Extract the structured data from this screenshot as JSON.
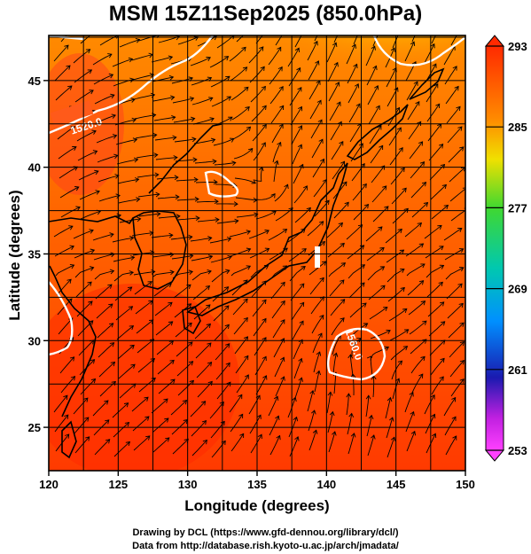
{
  "title": "MSM 15Z11Sep2025 (850.0hPa)",
  "map": {
    "xlabel": "Longitude (degrees)",
    "ylabel": "Latitude  (degrees)",
    "lon_range": [
      120,
      150
    ],
    "lat_range": [
      22.5,
      47.6
    ],
    "x_ticks": [
      "120",
      "125",
      "130",
      "135",
      "140",
      "145",
      "150"
    ],
    "x_tick_values": [
      120,
      125,
      130,
      135,
      140,
      145,
      150
    ],
    "y_ticks": [
      "25",
      "30",
      "35",
      "40",
      "45"
    ],
    "y_tick_values": [
      25,
      30,
      35,
      40,
      45
    ],
    "gridlines": true,
    "contours": [
      {
        "label": "1520.0",
        "lon": 122.8,
        "lat": 42.4
      },
      {
        "label": "1560.0",
        "lon": 142.0,
        "lat": 29.7
      }
    ]
  },
  "colorbar": {
    "tick_labels": [
      "293",
      "285",
      "277",
      "269",
      "261",
      "253"
    ],
    "tick_values": [
      293,
      285,
      277,
      269,
      261,
      253
    ],
    "range": [
      253,
      293
    ],
    "colors": [
      "#ff3300",
      "#ff8a00",
      "#d8e000",
      "#2ad82a",
      "#00c8c8",
      "#0070ff",
      "#1a20c0",
      "#ff30ff"
    ]
  },
  "credits": {
    "line1": "Drawing by DCL (https://www.gfd-dennou.org/library/dcl/)",
    "line2": "Data from http://database.rish.kyoto-u.ac.jp/arch/jmadata/"
  }
}
